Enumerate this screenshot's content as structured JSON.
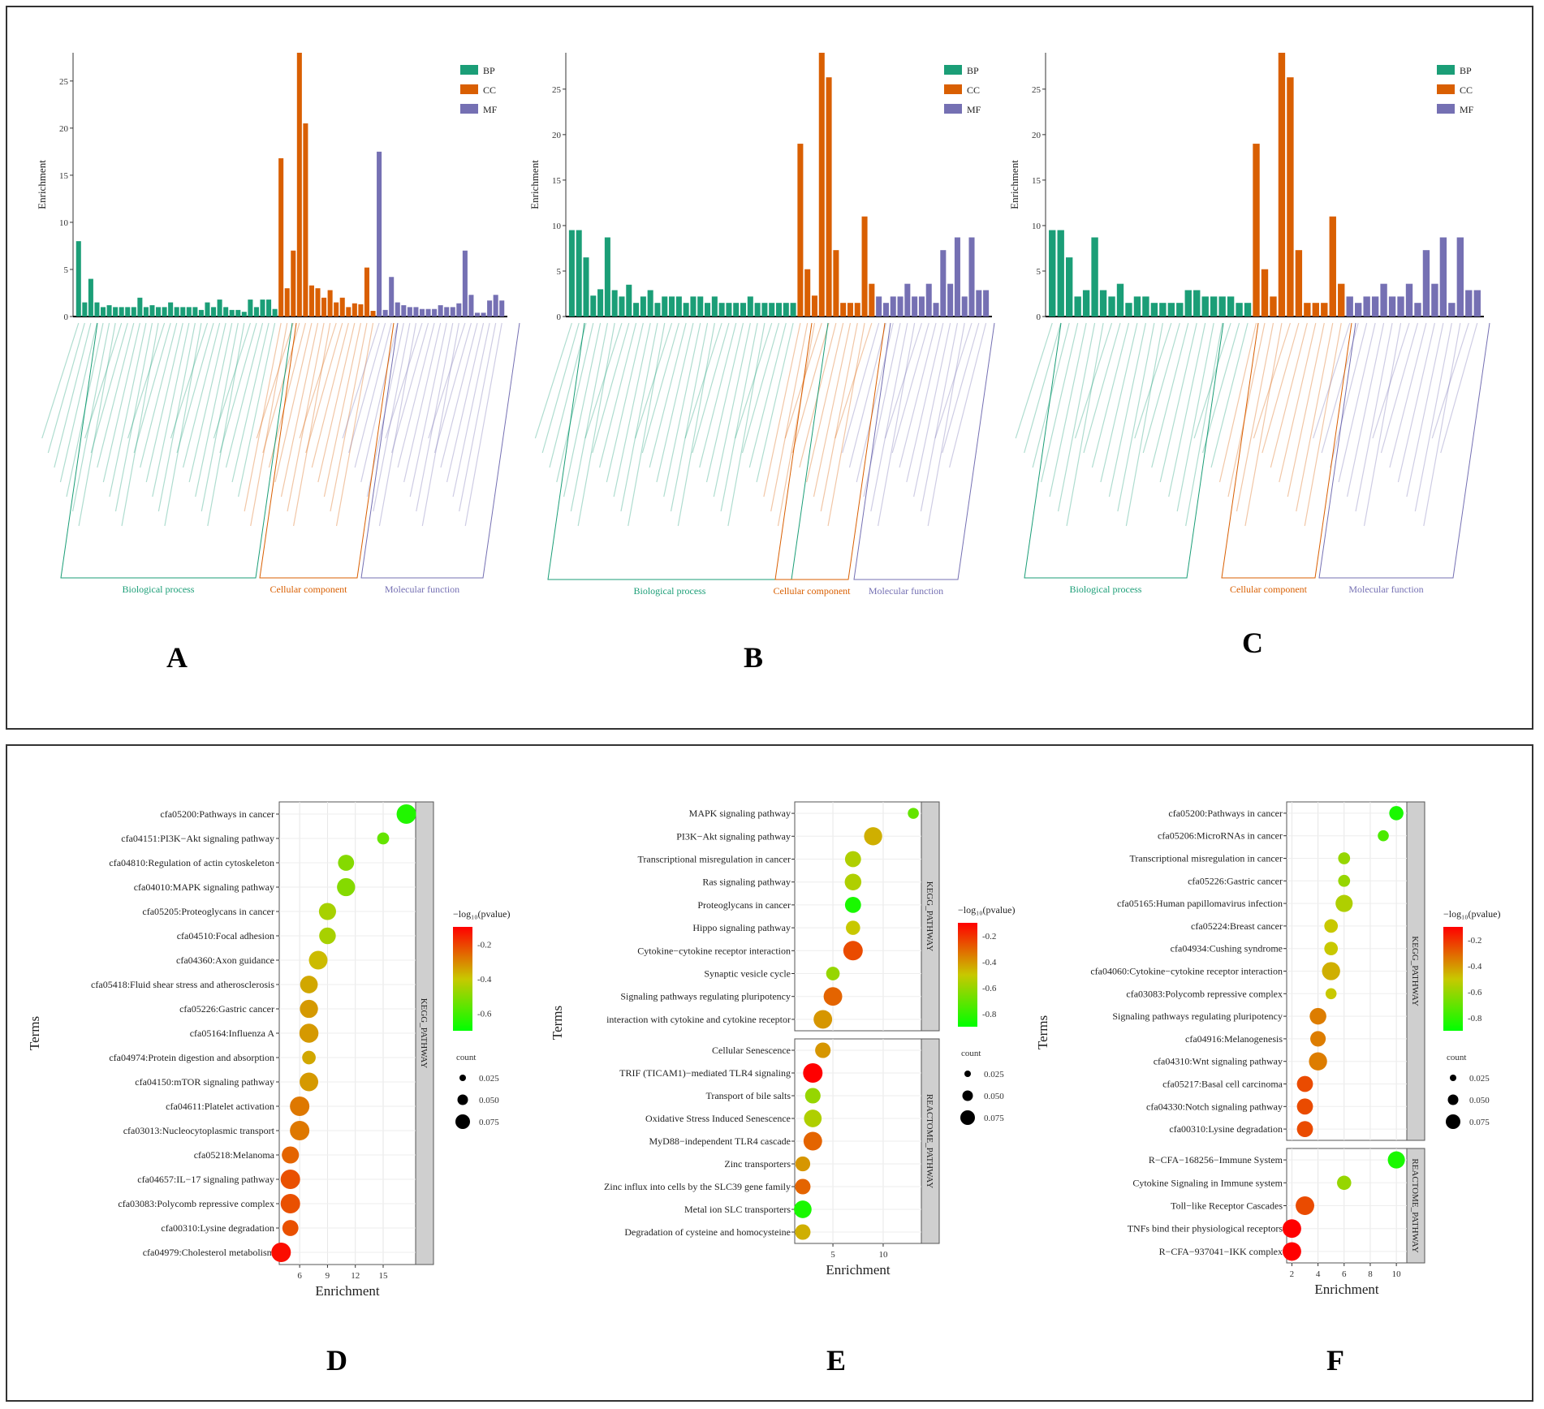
{
  "figure": {
    "panel_letters": [
      "A",
      "B",
      "C",
      "D",
      "E",
      "F"
    ],
    "go_legend": [
      {
        "key": "BP",
        "color": "#1b9e77"
      },
      {
        "key": "CC",
        "color": "#d95f02"
      },
      {
        "key": "MF",
        "color": "#7570b3"
      }
    ],
    "go_groups": [
      "Biological process",
      "Cellular component",
      "Molecular function"
    ],
    "colorscale": {
      "high": "#ff0000",
      "mid": "#c8c800",
      "low": "#00ff00"
    }
  },
  "chart_data": [
    {
      "panel": "A",
      "type": "bar",
      "ylabel": "Enrichment",
      "ylim": [
        0,
        28
      ],
      "yticks": [
        0,
        5,
        10,
        15,
        20,
        25
      ],
      "series": [
        {
          "name": "BP",
          "values": [
            8,
            1.5,
            4,
            1.5,
            1,
            1.2,
            1,
            1,
            1,
            1,
            2,
            1,
            1.2,
            1,
            1,
            1.5,
            1,
            1,
            1,
            1,
            0.7,
            1.5,
            1,
            1.8,
            1,
            0.7,
            0.7,
            0.5,
            1.8,
            1,
            1.8,
            1.8,
            0.8
          ]
        },
        {
          "name": "CC",
          "values": [
            16.8,
            3,
            7,
            28,
            20.5,
            3.3,
            3,
            2,
            2.8,
            1.5,
            2,
            1,
            1.4,
            1.3,
            5.2,
            0.6
          ]
        },
        {
          "name": "MF",
          "values": [
            17.5,
            0.7,
            4.2,
            1.5,
            1.2,
            1,
            1,
            0.8,
            0.8,
            0.8,
            1.2,
            1,
            1,
            1.4,
            7,
            2.3,
            0.4,
            0.4,
            1.7,
            2.3,
            1.7
          ]
        }
      ]
    },
    {
      "panel": "B",
      "type": "bar",
      "ylabel": "Enrichment",
      "ylim": [
        0,
        29
      ],
      "yticks": [
        0,
        5,
        10,
        15,
        20,
        25
      ],
      "series": [
        {
          "name": "BP",
          "values": [
            9.5,
            9.5,
            6.5,
            2.3,
            3,
            8.7,
            2.9,
            2.2,
            3.5,
            1.5,
            2.2,
            2.9,
            1.5,
            2.2,
            2.2,
            2.2,
            1.5,
            2.2,
            2.2,
            1.5,
            2.2,
            1.5,
            1.5,
            1.5,
            1.5,
            2.2,
            1.5,
            1.5,
            1.5,
            1.5,
            1.5,
            1.5
          ]
        },
        {
          "name": "CC",
          "values": [
            19,
            5.2,
            2.3,
            29,
            26.3,
            7.3,
            1.5,
            1.5,
            1.5,
            11,
            3.6
          ]
        },
        {
          "name": "MF",
          "values": [
            2.2,
            1.5,
            2.2,
            2.2,
            3.6,
            2.2,
            2.2,
            3.6,
            1.5,
            7.3,
            3.6,
            8.7,
            2.2,
            8.7,
            2.9,
            2.9
          ]
        }
      ]
    },
    {
      "panel": "C",
      "type": "bar",
      "ylabel": "Enrichment",
      "ylim": [
        0,
        29
      ],
      "yticks": [
        0,
        5,
        10,
        15,
        20,
        25
      ],
      "series": [
        {
          "name": "BP",
          "values": [
            9.5,
            9.5,
            6.5,
            2.2,
            2.9,
            8.7,
            2.9,
            2.2,
            3.6,
            1.5,
            2.2,
            2.2,
            1.5,
            1.5,
            1.5,
            1.5,
            2.9,
            2.9,
            2.2,
            2.2,
            2.2,
            2.2,
            1.5,
            1.5
          ]
        },
        {
          "name": "CC",
          "values": [
            19,
            5.2,
            2.2,
            29,
            26.3,
            7.3,
            1.5,
            1.5,
            1.5,
            11,
            3.6
          ]
        },
        {
          "name": "MF",
          "values": [
            2.2,
            1.5,
            2.2,
            2.2,
            3.6,
            2.2,
            2.2,
            3.6,
            1.5,
            7.3,
            3.6,
            8.7,
            1.5,
            8.7,
            2.9,
            2.9
          ]
        }
      ]
    },
    {
      "panel": "D",
      "type": "scatter",
      "xlabel": "Enrichment",
      "ylabel": "Terms",
      "xlim": [
        3.8,
        18.5
      ],
      "xticks": [
        6,
        9,
        12,
        15
      ],
      "legend_title": "−log₁₀(pvalue)",
      "color_ticks": [
        "-0.2",
        "-0.4",
        "-0.6"
      ],
      "color_range": [
        -0.7,
        -0.1
      ],
      "count_label": "count",
      "count_ticks": [
        "0.025",
        "0.050",
        "0.075"
      ],
      "facets": [
        {
          "strip": "KEGG_PATHWAY",
          "terms": [
            {
              "term": "cfa05200:Pathways in cancer",
              "x": 17.5,
              "c": -0.65,
              "size": 0.085
            },
            {
              "term": "cfa04151:PI3K−Akt signaling pathway",
              "x": 15,
              "c": -0.55,
              "size": 0.02
            },
            {
              "term": "cfa04810:Regulation of actin cytoskeleton",
              "x": 11,
              "c": -0.5,
              "size": 0.05
            },
            {
              "term": "cfa04010:MAPK signaling pathway",
              "x": 11,
              "c": -0.5,
              "size": 0.07
            },
            {
              "term": "cfa05205:Proteoglycans in cancer",
              "x": 9,
              "c": -0.45,
              "size": 0.06
            },
            {
              "term": "cfa04510:Focal adhesion",
              "x": 9,
              "c": -0.45,
              "size": 0.055
            },
            {
              "term": "cfa04360:Axon guidance",
              "x": 8,
              "c": -0.38,
              "size": 0.075
            },
            {
              "term": "cfa05418:Fluid shear stress and atherosclerosis",
              "x": 7,
              "c": -0.35,
              "size": 0.065
            },
            {
              "term": "cfa05226:Gastric cancer",
              "x": 7,
              "c": -0.33,
              "size": 0.07
            },
            {
              "term": "cfa05164:Influenza A",
              "x": 7,
              "c": -0.33,
              "size": 0.08
            },
            {
              "term": "cfa04974:Protein digestion and absorption",
              "x": 7,
              "c": -0.35,
              "size": 0.03
            },
            {
              "term": "cfa04150:mTOR signaling pathway",
              "x": 7,
              "c": -0.33,
              "size": 0.075
            },
            {
              "term": "cfa04611:Platelet activation",
              "x": 6,
              "c": -0.28,
              "size": 0.085
            },
            {
              "term": "cfa03013:Nucleocytoplasmic transport",
              "x": 6,
              "c": -0.28,
              "size": 0.085
            },
            {
              "term": "cfa05218:Melanoma",
              "x": 5,
              "c": -0.25,
              "size": 0.06
            },
            {
              "term": "cfa04657:IL−17 signaling pathway",
              "x": 5,
              "c": -0.22,
              "size": 0.085
            },
            {
              "term": "cfa03083:Polycomb repressive complex",
              "x": 5,
              "c": -0.22,
              "size": 0.085
            },
            {
              "term": "cfa00310:Lysine degradation",
              "x": 5,
              "c": -0.22,
              "size": 0.05
            },
            {
              "term": "cfa04979:Cholesterol metabolism",
              "x": 4,
              "c": -0.12,
              "size": 0.085
            }
          ]
        }
      ]
    },
    {
      "panel": "E",
      "type": "scatter",
      "xlabel": "Enrichment",
      "ylabel": "Terms",
      "xlim": [
        1.2,
        13.8
      ],
      "xticks": [
        5,
        10
      ],
      "legend_title": "−log₁₀(pvalue)",
      "color_ticks": [
        "-0.2",
        "-0.4",
        "-0.6",
        "-0.8"
      ],
      "color_range": [
        -0.9,
        -0.1
      ],
      "count_label": "count",
      "count_ticks": [
        "0.025",
        "0.050",
        "0.075"
      ],
      "facets": [
        {
          "strip": "KEGG_PATHWAY",
          "terms": [
            {
              "term": "MAPK signaling pathway",
              "x": 13,
              "c": -0.7,
              "size": 0.015
            },
            {
              "term": "PI3K−Akt signaling pathway",
              "x": 9,
              "c": -0.45,
              "size": 0.07
            },
            {
              "term": "Transcriptional misregulation in cancer",
              "x": 7,
              "c": -0.55,
              "size": 0.05
            },
            {
              "term": "Ras signaling pathway",
              "x": 7,
              "c": -0.55,
              "size": 0.055
            },
            {
              "term": "Proteoglycans in cancer",
              "x": 7,
              "c": -0.85,
              "size": 0.05
            },
            {
              "term": "Hippo signaling pathway",
              "x": 7,
              "c": -0.5,
              "size": 0.035
            },
            {
              "term": "Cytokine−cytokine receptor interaction",
              "x": 7,
              "c": -0.25,
              "size": 0.085
            },
            {
              "term": "Synaptic vesicle cycle",
              "x": 5,
              "c": -0.6,
              "size": 0.03
            },
            {
              "term": "Signaling pathways regulating pluripotency",
              "x": 5,
              "c": -0.3,
              "size": 0.075
            },
            {
              "term": "interaction with cytokine and cytokine receptor",
              "x": 4,
              "c": -0.4,
              "size": 0.075
            }
          ]
        },
        {
          "strip": "REACTOME_PATHWAY",
          "terms": [
            {
              "term": "Cellular Senescence",
              "x": 4,
              "c": -0.4,
              "size": 0.045
            },
            {
              "term": "TRIF (TICAM1)−mediated TLR4 signaling",
              "x": 3,
              "c": -0.1,
              "size": 0.085
            },
            {
              "term": "Transport of bile salts",
              "x": 3,
              "c": -0.6,
              "size": 0.045
            },
            {
              "term": "Oxidative Stress Induced Senescence",
              "x": 3,
              "c": -0.55,
              "size": 0.065
            },
            {
              "term": "MyD88−independent TLR4 cascade",
              "x": 3,
              "c": -0.3,
              "size": 0.075
            },
            {
              "term": "Zinc transporters",
              "x": 2,
              "c": -0.4,
              "size": 0.04
            },
            {
              "term": "Zinc influx into cells by the SLC39 gene family",
              "x": 2,
              "c": -0.3,
              "size": 0.045
            },
            {
              "term": "Metal ion SLC transporters",
              "x": 2,
              "c": -0.85,
              "size": 0.065
            },
            {
              "term": "Degradation of cysteine and homocysteine",
              "x": 2,
              "c": -0.45,
              "size": 0.045
            }
          ]
        }
      ]
    },
    {
      "panel": "F",
      "type": "scatter",
      "xlabel": "Enrichment",
      "ylabel": "Terms",
      "xlim": [
        1.6,
        10.8
      ],
      "xticks": [
        2,
        4,
        6,
        8,
        10
      ],
      "legend_title": "−log₁₀(pvalue)",
      "color_ticks": [
        "-0.2",
        "-0.4",
        "-0.6",
        "-0.8"
      ],
      "color_range": [
        -0.9,
        -0.1
      ],
      "count_label": "count",
      "count_ticks": [
        "0.025",
        "0.050",
        "0.075"
      ],
      "facets": [
        {
          "strip": "KEGG_PATHWAY",
          "terms": [
            {
              "term": "cfa05200:Pathways in cancer",
              "x": 10,
              "c": -0.85,
              "size": 0.035
            },
            {
              "term": "cfa05206:MicroRNAs in cancer",
              "x": 9,
              "c": -0.75,
              "size": 0.015
            },
            {
              "term": "Transcriptional misregulation in cancer",
              "x": 6,
              "c": -0.6,
              "size": 0.02
            },
            {
              "term": "cfa05226:Gastric cancer",
              "x": 6,
              "c": -0.6,
              "size": 0.02
            },
            {
              "term": "cfa05165:Human papillomavirus infection",
              "x": 6,
              "c": -0.55,
              "size": 0.06
            },
            {
              "term": "cfa05224:Breast cancer",
              "x": 5,
              "c": -0.5,
              "size": 0.03
            },
            {
              "term": "cfa04934:Cushing syndrome",
              "x": 5,
              "c": -0.5,
              "size": 0.03
            },
            {
              "term": "cfa04060:Cytokine−cytokine receptor interaction",
              "x": 5,
              "c": -0.45,
              "size": 0.07
            },
            {
              "term": "cfa03083:Polycomb repressive complex",
              "x": 5,
              "c": -0.5,
              "size": 0.015
            },
            {
              "term": "Signaling pathways regulating pluripotency",
              "x": 4,
              "c": -0.35,
              "size": 0.055
            },
            {
              "term": "cfa04916:Melanogenesis",
              "x": 4,
              "c": -0.35,
              "size": 0.045
            },
            {
              "term": "cfa04310:Wnt signaling pathway",
              "x": 4,
              "c": -0.35,
              "size": 0.07
            },
            {
              "term": "cfa05217:Basal cell carcinoma",
              "x": 3,
              "c": -0.25,
              "size": 0.05
            },
            {
              "term": "cfa04330:Notch signaling pathway",
              "x": 3,
              "c": -0.25,
              "size": 0.05
            },
            {
              "term": "cfa00310:Lysine degradation",
              "x": 3,
              "c": -0.25,
              "size": 0.05
            }
          ]
        },
        {
          "strip": "REACTOME_PATHWAY",
          "terms": [
            {
              "term": "R−CFA−168256−Immune System",
              "x": 10,
              "c": -0.85,
              "size": 0.06
            },
            {
              "term": "Cytokine Signaling in Immune system",
              "x": 6,
              "c": -0.6,
              "size": 0.035
            },
            {
              "term": "Toll−like Receptor Cascades",
              "x": 3,
              "c": -0.25,
              "size": 0.075
            },
            {
              "term": "TNFs bind their physiological receptors",
              "x": 2,
              "c": -0.1,
              "size": 0.075
            },
            {
              "term": "R−CFA−937041−IKK complex",
              "x": 2,
              "c": -0.1,
              "size": 0.075
            }
          ]
        }
      ]
    }
  ]
}
